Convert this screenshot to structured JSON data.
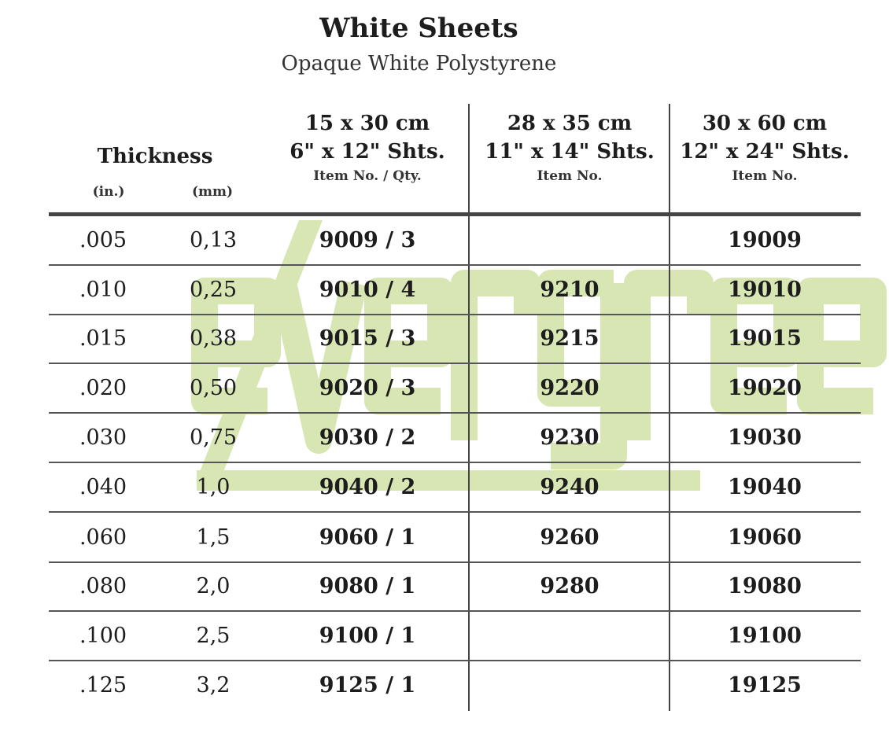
{
  "title": "White Sheets",
  "subtitle": "Opaque White Polystyrene",
  "watermark": {
    "text": "evergreen",
    "color": "#d8e6b4"
  },
  "header": {
    "thickness": "Thickness",
    "in_unit": "(in.)",
    "mm_unit": "(mm)",
    "columns": [
      {
        "metric": "15 x 30 cm",
        "imperial": "6\" x 12\" Shts.",
        "sub": "Item No. / Qty."
      },
      {
        "metric": "28 x 35 cm",
        "imperial": "11\" x 14\" Shts.",
        "sub": "Item No."
      },
      {
        "metric": "30 x 60 cm",
        "imperial": "12\" x 24\" Shts.",
        "sub": "Item No."
      }
    ]
  },
  "rows": [
    {
      "in": ".005",
      "mm": "0,13",
      "c1": "9009 / 3",
      "c2": "",
      "c3": "19009"
    },
    {
      "in": ".010",
      "mm": "0,25",
      "c1": "9010 / 4",
      "c2": "9210",
      "c3": "19010"
    },
    {
      "in": ".015",
      "mm": "0,38",
      "c1": "9015 / 3",
      "c2": "9215",
      "c3": "19015"
    },
    {
      "in": ".020",
      "mm": "0,50",
      "c1": "9020 / 3",
      "c2": "9220",
      "c3": "19020"
    },
    {
      "in": ".030",
      "mm": "0,75",
      "c1": "9030 / 2",
      "c2": "9230",
      "c3": "19030"
    },
    {
      "in": ".040",
      "mm": "1,0",
      "c1": "9040 / 2",
      "c2": "9240",
      "c3": "19040"
    },
    {
      "in": ".060",
      "mm": "1,5",
      "c1": "9060 / 1",
      "c2": "9260",
      "c3": "19060"
    },
    {
      "in": ".080",
      "mm": "2,0",
      "c1": "9080 / 1",
      "c2": "9280",
      "c3": "19080"
    },
    {
      "in": ".100",
      "mm": "2,5",
      "c1": "9100 / 1",
      "c2": "",
      "c3": "19100"
    },
    {
      "in": ".125",
      "mm": "3,2",
      "c1": "9125 / 1",
      "c2": "",
      "c3": "19125"
    }
  ]
}
